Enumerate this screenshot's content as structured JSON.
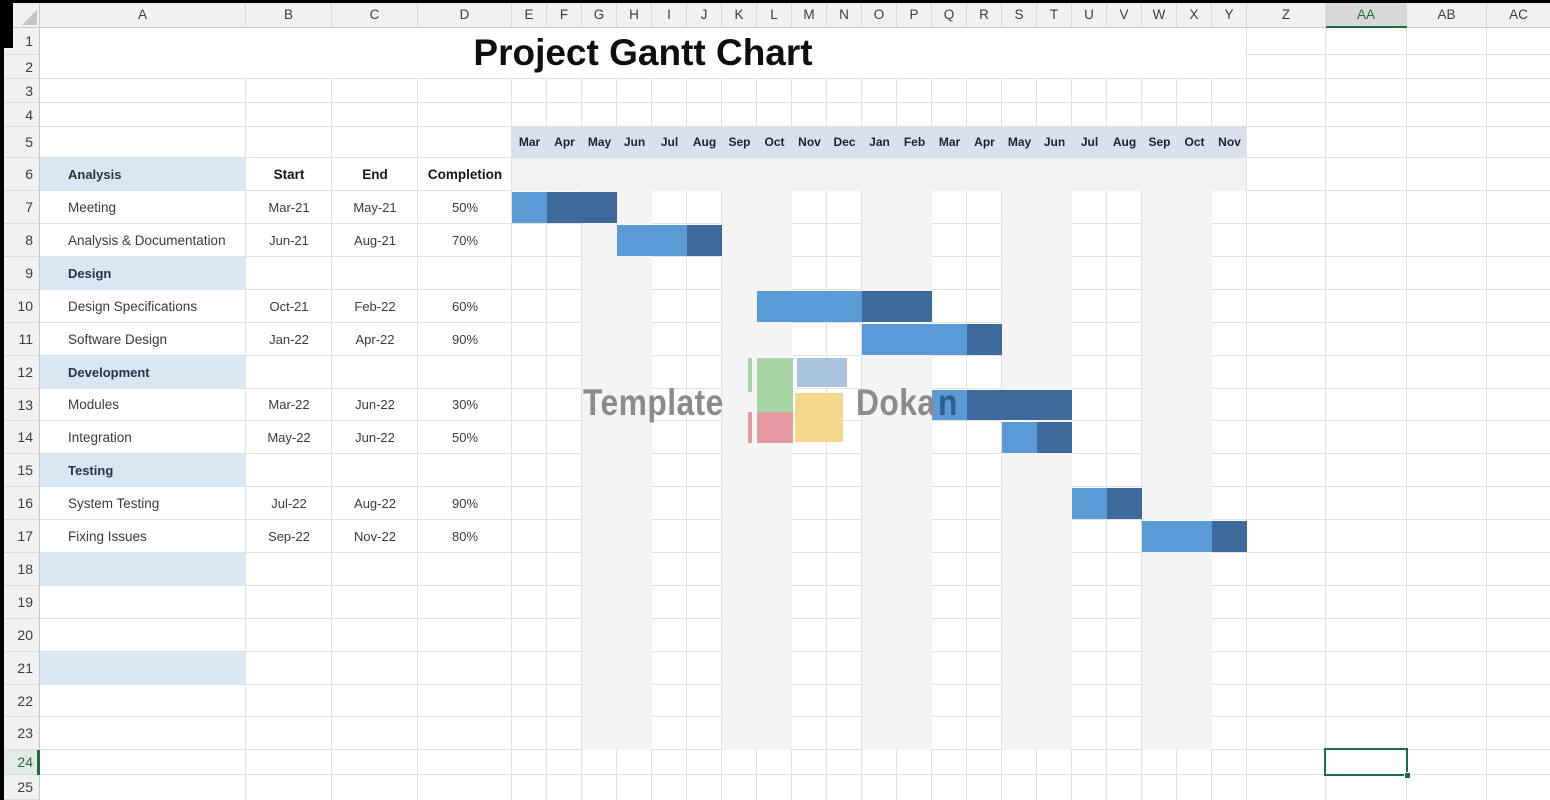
{
  "title": "Project Gantt Chart",
  "columns": [
    "A",
    "B",
    "C",
    "D",
    "E",
    "F",
    "G",
    "H",
    "I",
    "J",
    "K",
    "L",
    "M",
    "N",
    "O",
    "P",
    "Q",
    "R",
    "S",
    "T",
    "U",
    "V",
    "W",
    "X",
    "Y",
    "Z",
    "AA",
    "AB",
    "AC"
  ],
  "rows": [
    "1",
    "2",
    "3",
    "4",
    "5",
    "6",
    "7",
    "8",
    "9",
    "10",
    "11",
    "12",
    "13",
    "14",
    "15",
    "16",
    "17",
    "18",
    "19",
    "20",
    "21",
    "22",
    "23",
    "24",
    "25"
  ],
  "selection": {
    "cell": "AA24",
    "column": "AA",
    "row": "24"
  },
  "gantt": {
    "months": [
      "Mar",
      "Apr",
      "May",
      "Jun",
      "Jul",
      "Aug",
      "Sep",
      "Oct",
      "Nov",
      "Dec",
      "Jan",
      "Feb",
      "Mar",
      "Apr",
      "May",
      "Jun",
      "Jul",
      "Aug",
      "Sep",
      "Oct",
      "Nov"
    ],
    "table_headers": {
      "start": "Start",
      "end": "End",
      "completion": "Completion"
    },
    "rows": [
      {
        "type": "section",
        "sheet_row": 6,
        "label": "Analysis"
      },
      {
        "type": "task",
        "sheet_row": 7,
        "label": "Meeting",
        "start": "Mar-21",
        "end": "May-21",
        "completion": "50%",
        "bar_start_month": 0,
        "bar_months": 3,
        "bar_done_months": 1
      },
      {
        "type": "task",
        "sheet_row": 8,
        "label": "Analysis & Documentation",
        "start": "Jun-21",
        "end": "Aug-21",
        "completion": "70%",
        "bar_start_month": 3,
        "bar_months": 3,
        "bar_done_months": 2
      },
      {
        "type": "section",
        "sheet_row": 9,
        "label": "Design"
      },
      {
        "type": "task",
        "sheet_row": 10,
        "label": "Design Specifications",
        "start": "Oct-21",
        "end": "Feb-22",
        "completion": "60%",
        "bar_start_month": 7,
        "bar_months": 5,
        "bar_done_months": 3
      },
      {
        "type": "task",
        "sheet_row": 11,
        "label": "Software Design",
        "start": "Jan-22",
        "end": "Apr-22",
        "completion": "90%",
        "bar_start_month": 10,
        "bar_months": 4,
        "bar_done_months": 3
      },
      {
        "type": "section",
        "sheet_row": 12,
        "label": "Development"
      },
      {
        "type": "task",
        "sheet_row": 13,
        "label": "Modules",
        "start": "Mar-22",
        "end": "Jun-22",
        "completion": "30%",
        "bar_start_month": 12,
        "bar_months": 4,
        "bar_done_months": 1
      },
      {
        "type": "task",
        "sheet_row": 14,
        "label": "Integration",
        "start": "May-22",
        "end": "Jun-22",
        "completion": "50%",
        "bar_start_month": 14,
        "bar_months": 2,
        "bar_done_months": 1
      },
      {
        "type": "section",
        "sheet_row": 15,
        "label": "Testing"
      },
      {
        "type": "task",
        "sheet_row": 16,
        "label": "System Testing",
        "start": "Jul-22",
        "end": "Aug-22",
        "completion": "90%",
        "bar_start_month": 16,
        "bar_months": 2,
        "bar_done_months": 1
      },
      {
        "type": "task",
        "sheet_row": 17,
        "label": "Fixing Issues",
        "start": "Sep-22",
        "end": "Nov-22",
        "completion": "80%",
        "bar_start_month": 18,
        "bar_months": 3,
        "bar_done_months": 2
      },
      {
        "type": "empty_section",
        "sheet_row": 18
      },
      {
        "type": "empty_section",
        "sheet_row": 21
      }
    ]
  },
  "watermark": {
    "left_text": "Template",
    "right_text": "Dokan"
  },
  "colors": {
    "bar_light": "#5b9bd5",
    "bar_dark": "#3e6b9b",
    "section_fill": "#d9e6f4",
    "month_band": "#dae1ed",
    "header_row_fill": "#f1f2f4",
    "stripe": "#f4f4f5",
    "selection_green": "#1f6e43",
    "watermark_gray": "#8b8b8b",
    "logo_green": "#a8d5a8",
    "logo_blue": "#a8c4dd",
    "logo_red": "#e59aa1",
    "logo_yellow": "#f4d88e"
  }
}
